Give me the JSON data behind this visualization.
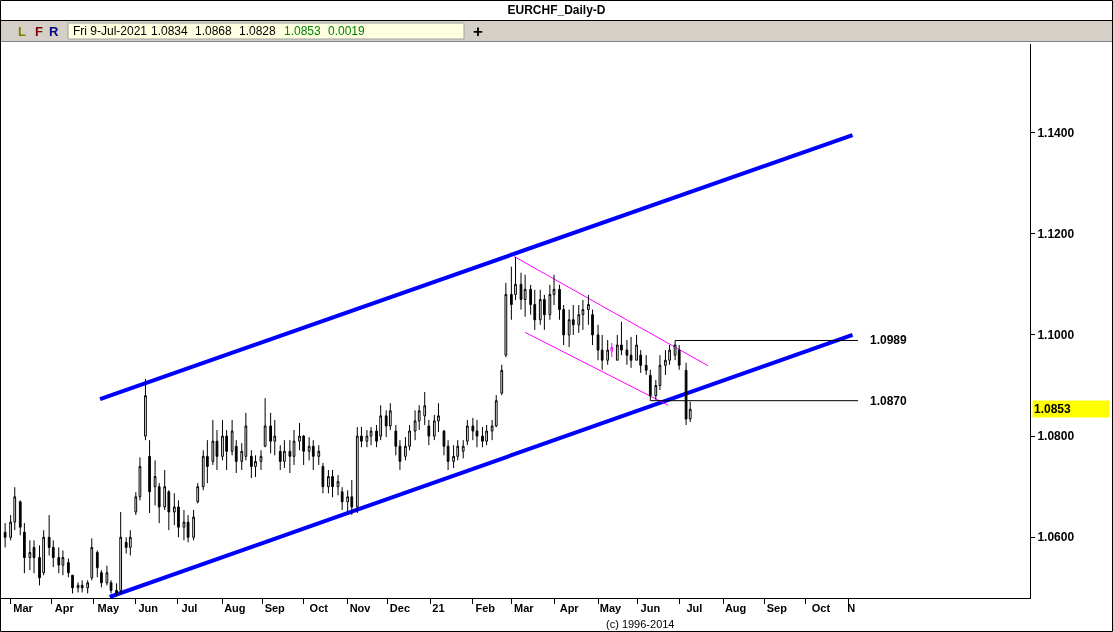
{
  "chart_data": {
    "type": "candlestick",
    "title": "EURCHF_Daily-D",
    "xlim": [
      "2020-02-24",
      "2022-03-13"
    ],
    "ylim": [
      1.048,
      1.1575
    ],
    "xticks": [
      {
        "value": "2020-03-02",
        "label": null
      },
      {
        "value": "2020-03-11",
        "label": "Mar"
      },
      {
        "value": "2020-04-01",
        "label": null
      },
      {
        "value": "2020-04-10",
        "label": "Apr"
      },
      {
        "value": "2020-05-01",
        "label": null
      },
      {
        "value": "2020-05-12",
        "label": "May"
      },
      {
        "value": "2020-06-01",
        "label": null
      },
      {
        "value": "2020-06-10",
        "label": "Jun"
      },
      {
        "value": "2020-07-01",
        "label": null
      },
      {
        "value": "2020-07-10",
        "label": "Jul"
      },
      {
        "value": "2020-08-03",
        "label": null
      },
      {
        "value": "2020-08-12",
        "label": "Aug"
      },
      {
        "value": "2020-09-01",
        "label": null
      },
      {
        "value": "2020-09-10",
        "label": "Sep"
      },
      {
        "value": "2020-10-01",
        "label": null
      },
      {
        "value": "2020-10-12",
        "label": "Oct"
      },
      {
        "value": "2020-11-02",
        "label": null
      },
      {
        "value": "2020-11-11",
        "label": "Nov"
      },
      {
        "value": "2020-12-01",
        "label": null
      },
      {
        "value": "2020-12-10",
        "label": "Dec"
      },
      {
        "value": "2021-01-01",
        "label": null
      },
      {
        "value": "2021-01-07",
        "label": "21"
      },
      {
        "value": "2021-02-01",
        "label": null
      },
      {
        "value": "2021-02-10",
        "label": "Feb"
      },
      {
        "value": "2021-03-01",
        "label": null
      },
      {
        "value": "2021-03-10",
        "label": "Mar"
      },
      {
        "value": "2021-04-01",
        "label": null
      },
      {
        "value": "2021-04-12",
        "label": "Apr"
      },
      {
        "value": "2021-05-03",
        "label": null
      },
      {
        "value": "2021-05-12",
        "label": "May"
      },
      {
        "value": "2021-06-01",
        "label": null
      },
      {
        "value": "2021-06-10",
        "label": "Jun"
      },
      {
        "value": "2021-07-01",
        "label": null
      },
      {
        "value": "2021-07-12",
        "label": "Jul"
      },
      {
        "value": "2021-08-02",
        "label": null
      },
      {
        "value": "2021-08-11",
        "label": "Aug"
      },
      {
        "value": "2021-09-01",
        "label": null
      },
      {
        "value": "2021-09-10",
        "label": "Sep"
      },
      {
        "value": "2021-10-01",
        "label": null
      },
      {
        "value": "2021-10-12",
        "label": "Oct"
      },
      {
        "value": "2021-11-01",
        "label": null
      },
      {
        "value": "2021-11-03",
        "label": "N"
      }
    ],
    "yticks": [
      {
        "value": 1.06,
        "label": "1.0600"
      },
      {
        "value": 1.08,
        "label": "1.0800"
      },
      {
        "value": 1.1,
        "label": "1.1000"
      },
      {
        "value": 1.12,
        "label": "1.1200"
      },
      {
        "value": 1.14,
        "label": "1.1400"
      }
    ],
    "series": [
      {
        "type": "candlestick",
        "color": "#000000",
        "x": [
          "2020-02-27",
          "2020-03-02",
          "2020-03-05",
          "2020-03-09",
          "2020-03-12",
          "2020-03-16",
          "2020-03-19",
          "2020-03-23",
          "2020-03-26",
          "2020-03-30",
          "2020-04-02",
          "2020-04-06",
          "2020-04-09",
          "2020-04-13",
          "2020-04-16",
          "2020-04-20",
          "2020-04-23",
          "2020-04-27",
          "2020-04-30",
          "2020-05-04",
          "2020-05-07",
          "2020-05-11",
          "2020-05-14",
          "2020-05-18",
          "2020-05-21",
          "2020-05-25",
          "2020-05-28",
          "2020-06-01",
          "2020-06-04",
          "2020-06-08",
          "2020-06-11",
          "2020-06-15",
          "2020-06-18",
          "2020-06-22",
          "2020-06-25",
          "2020-06-29",
          "2020-07-02",
          "2020-07-06",
          "2020-07-09",
          "2020-07-13",
          "2020-07-16",
          "2020-07-20",
          "2020-07-23",
          "2020-07-27",
          "2020-07-30",
          "2020-08-03",
          "2020-08-06",
          "2020-08-10",
          "2020-08-13",
          "2020-08-17",
          "2020-08-20",
          "2020-08-24",
          "2020-08-27",
          "2020-08-31",
          "2020-09-03",
          "2020-09-07",
          "2020-09-10",
          "2020-09-14",
          "2020-09-17",
          "2020-09-21",
          "2020-09-24",
          "2020-09-28",
          "2020-10-01",
          "2020-10-05",
          "2020-10-08",
          "2020-10-12",
          "2020-10-15",
          "2020-10-19",
          "2020-10-22",
          "2020-10-26",
          "2020-10-29",
          "2020-11-02",
          "2020-11-05",
          "2020-11-09",
          "2020-11-12",
          "2020-11-16",
          "2020-11-19",
          "2020-11-23",
          "2020-11-26",
          "2020-11-30",
          "2020-12-03",
          "2020-12-07",
          "2020-12-10",
          "2020-12-14",
          "2020-12-17",
          "2020-12-21",
          "2020-12-24",
          "2020-12-28",
          "2020-12-31",
          "2021-01-04",
          "2021-01-07",
          "2021-01-11",
          "2021-01-14",
          "2021-01-18",
          "2021-01-21",
          "2021-01-25",
          "2021-01-28",
          "2021-02-01",
          "2021-02-04",
          "2021-02-08",
          "2021-02-11",
          "2021-02-15",
          "2021-02-18",
          "2021-02-22",
          "2021-02-25",
          "2021-03-01",
          "2021-03-04",
          "2021-03-08",
          "2021-03-11",
          "2021-03-15",
          "2021-03-18",
          "2021-03-22",
          "2021-03-25",
          "2021-03-29",
          "2021-04-01",
          "2021-04-05",
          "2021-04-08",
          "2021-04-12",
          "2021-04-15",
          "2021-04-19",
          "2021-04-22",
          "2021-04-26",
          "2021-04-29",
          "2021-05-03",
          "2021-05-06",
          "2021-05-10",
          "2021-05-17",
          "2021-05-20",
          "2021-05-24",
          "2021-05-27",
          "2021-05-31",
          "2021-06-03",
          "2021-06-07",
          "2021-06-10",
          "2021-06-14",
          "2021-06-17",
          "2021-06-21",
          "2021-06-24",
          "2021-06-28",
          "2021-07-01",
          "2021-07-06",
          "2021-07-09"
        ],
        "ohlc": [
          [
            1.061,
            1.0628,
            1.058,
            1.06
          ],
          [
            1.06,
            1.0644,
            1.0594,
            1.063
          ],
          [
            1.063,
            1.0699,
            1.0614,
            1.068
          ],
          [
            1.067,
            1.0673,
            1.0604,
            1.062
          ],
          [
            1.061,
            1.0628,
            1.0529,
            1.056
          ],
          [
            1.056,
            1.0594,
            1.0535,
            1.057
          ],
          [
            1.058,
            1.0594,
            1.0529,
            1.056
          ],
          [
            1.056,
            1.0584,
            1.0505,
            1.052
          ],
          [
            1.053,
            1.0614,
            1.0525,
            1.06
          ],
          [
            1.06,
            1.0644,
            1.0564,
            1.058
          ],
          [
            1.058,
            1.0594,
            1.0541,
            1.056
          ],
          [
            1.056,
            1.058,
            1.0529,
            1.0545
          ],
          [
            1.0545,
            1.0574,
            1.0525,
            1.056
          ],
          [
            1.055,
            1.0558,
            1.0521,
            1.053
          ],
          [
            1.0525,
            1.0525,
            1.0489,
            1.05
          ],
          [
            1.05,
            1.0511,
            1.0491,
            1.0505
          ],
          [
            1.0505,
            1.0515,
            1.0491,
            1.05
          ],
          [
            1.05,
            1.0515,
            1.0489,
            1.051
          ],
          [
            1.052,
            1.0598,
            1.0515,
            1.058
          ],
          [
            1.057,
            1.0574,
            1.0521,
            1.054
          ],
          [
            1.053,
            1.0535,
            1.0501,
            1.051
          ],
          [
            1.051,
            1.0544,
            1.0505,
            1.053
          ],
          [
            1.051,
            1.0515,
            1.0489,
            1.0495
          ],
          [
            1.0495,
            1.0509,
            1.0483,
            1.049
          ],
          [
            1.0495,
            1.065,
            1.0489,
            1.06
          ],
          [
            1.059,
            1.06,
            1.0568,
            1.058
          ],
          [
            1.058,
            1.0614,
            1.0564,
            1.06
          ],
          [
            1.065,
            1.0689,
            1.0644,
            1.068
          ],
          [
            1.068,
            1.0758,
            1.0673,
            1.074
          ],
          [
            1.08,
            1.0913,
            1.0792,
            1.088
          ],
          [
            1.076,
            1.0792,
            1.0648,
            1.069
          ],
          [
            1.07,
            1.0752,
            1.0663,
            1.072
          ],
          [
            1.07,
            1.0707,
            1.0628,
            1.066
          ],
          [
            1.066,
            1.0733,
            1.0654,
            1.07
          ],
          [
            1.069,
            1.0693,
            1.0614,
            1.065
          ],
          [
            1.065,
            1.0687,
            1.0624,
            1.066
          ],
          [
            1.066,
            1.0673,
            1.06,
            1.062
          ],
          [
            1.062,
            1.0654,
            1.0594,
            1.063
          ],
          [
            1.063,
            1.0644,
            1.059,
            1.06
          ],
          [
            1.06,
            1.0654,
            1.0594,
            1.064
          ],
          [
            1.067,
            1.0707,
            1.0667,
            1.07
          ],
          [
            1.07,
            1.0772,
            1.0693,
            1.076
          ],
          [
            1.076,
            1.0792,
            1.0707,
            1.074
          ],
          [
            1.075,
            1.0832,
            1.0743,
            1.079
          ],
          [
            1.079,
            1.0812,
            1.0733,
            1.076
          ],
          [
            1.076,
            1.0832,
            1.0752,
            1.08
          ],
          [
            1.08,
            1.0812,
            1.0733,
            1.077
          ],
          [
            1.077,
            1.0832,
            1.0762,
            1.081
          ],
          [
            1.078,
            1.0792,
            1.0727,
            1.075
          ],
          [
            1.075,
            1.0786,
            1.0733,
            1.077
          ],
          [
            1.076,
            1.0846,
            1.0752,
            1.082
          ],
          [
            1.076,
            1.0772,
            1.0717,
            1.074
          ],
          [
            1.074,
            1.0762,
            1.0719,
            1.075
          ],
          [
            1.075,
            1.0772,
            1.0733,
            1.076
          ],
          [
            1.078,
            1.0875,
            1.0778,
            1.082
          ],
          [
            1.082,
            1.0846,
            1.0766,
            1.079
          ],
          [
            1.079,
            1.0832,
            1.0762,
            1.08
          ],
          [
            1.077,
            1.0782,
            1.0733,
            1.075
          ],
          [
            1.075,
            1.0792,
            1.0737,
            1.077
          ],
          [
            1.077,
            1.0792,
            1.0727,
            1.076
          ],
          [
            1.076,
            1.0812,
            1.0743,
            1.079
          ],
          [
            1.079,
            1.0826,
            1.0772,
            1.08
          ],
          [
            1.08,
            1.0802,
            1.0743,
            1.077
          ],
          [
            1.077,
            1.0798,
            1.0752,
            1.078
          ],
          [
            1.078,
            1.0792,
            1.0733,
            1.076
          ],
          [
            1.076,
            1.0782,
            1.0743,
            1.077
          ],
          [
            1.074,
            1.0747,
            1.0687,
            1.07
          ],
          [
            1.07,
            1.0733,
            1.0687,
            1.072
          ],
          [
            1.072,
            1.0733,
            1.0679,
            1.07
          ],
          [
            1.07,
            1.0723,
            1.0683,
            1.071
          ],
          [
            1.069,
            1.0699,
            1.0654,
            1.067
          ],
          [
            1.067,
            1.0693,
            1.065,
            1.068
          ],
          [
            1.068,
            1.0713,
            1.0644,
            1.066
          ],
          [
            1.066,
            1.0818,
            1.0648,
            1.08
          ],
          [
            1.08,
            1.0818,
            1.0778,
            1.079
          ],
          [
            1.079,
            1.0812,
            1.0778,
            1.08
          ],
          [
            1.08,
            1.0818,
            1.0782,
            1.081
          ],
          [
            1.081,
            1.0822,
            1.0778,
            1.079
          ],
          [
            1.08,
            1.0861,
            1.0792,
            1.084
          ],
          [
            1.084,
            1.0851,
            1.0798,
            1.082
          ],
          [
            1.082,
            1.0865,
            1.0812,
            1.085
          ],
          [
            1.081,
            1.0822,
            1.0762,
            1.078
          ],
          [
            1.078,
            1.0792,
            1.0733,
            1.075
          ],
          [
            1.076,
            1.0798,
            1.0752,
            1.078
          ],
          [
            1.078,
            1.0822,
            1.0772,
            1.081
          ],
          [
            1.081,
            1.0851,
            1.0792,
            1.083
          ],
          [
            1.083,
            1.0861,
            1.0812,
            1.085
          ],
          [
            1.084,
            1.0887,
            1.0822,
            1.086
          ],
          [
            1.082,
            1.0832,
            1.0782,
            1.08
          ],
          [
            1.08,
            1.0842,
            1.0792,
            1.083
          ],
          [
            1.083,
            1.0865,
            1.0808,
            1.084
          ],
          [
            1.081,
            1.0812,
            1.0762,
            1.078
          ],
          [
            1.078,
            1.0792,
            1.0733,
            1.075
          ],
          [
            1.075,
            1.0782,
            1.0737,
            1.076
          ],
          [
            1.076,
            1.0792,
            1.0752,
            1.078
          ],
          [
            1.077,
            1.0792,
            1.0756,
            1.078
          ],
          [
            1.079,
            1.0832,
            1.0782,
            1.082
          ],
          [
            1.082,
            1.0836,
            1.0792,
            1.081
          ],
          [
            1.081,
            1.0832,
            1.0778,
            1.08
          ],
          [
            1.08,
            1.0818,
            1.0778,
            1.079
          ],
          [
            1.079,
            1.0822,
            1.0782,
            1.081
          ],
          [
            1.081,
            1.0832,
            1.0792,
            1.082
          ],
          [
            1.082,
            1.0881,
            1.0818,
            1.087
          ],
          [
            1.0885,
            1.0941,
            1.0881,
            1.093
          ],
          [
            1.096,
            1.1103,
            1.0956,
            1.108
          ],
          [
            1.108,
            1.1135,
            1.103,
            1.106
          ],
          [
            1.108,
            1.1154,
            1.1069,
            1.11
          ],
          [
            1.11,
            1.1123,
            1.105,
            1.107
          ],
          [
            1.107,
            1.1119,
            1.1036,
            1.109
          ],
          [
            1.109,
            1.1099,
            1.104,
            1.106
          ],
          [
            1.106,
            1.1089,
            1.101,
            1.103
          ],
          [
            1.103,
            1.1089,
            1.102,
            1.107
          ],
          [
            1.107,
            1.1079,
            1.101,
            1.104
          ],
          [
            1.104,
            1.1099,
            1.103,
            1.108
          ],
          [
            1.108,
            1.1119,
            1.1059,
            1.109
          ],
          [
            1.109,
            1.1099,
            1.103,
            1.105
          ],
          [
            1.105,
            1.1059,
            1.098,
            1.1
          ],
          [
            1.1,
            1.105,
            1.0976,
            1.103
          ],
          [
            1.103,
            1.1059,
            1.1,
            1.102
          ],
          [
            1.102,
            1.1059,
            1.1004,
            1.104
          ],
          [
            1.104,
            1.1069,
            1.101,
            1.105
          ],
          [
            1.105,
            1.1079,
            1.102,
            1.106
          ],
          [
            1.104,
            1.105,
            1.098,
            1.1
          ],
          [
            1.1,
            1.102,
            1.095,
            1.097
          ],
          [
            1.097,
            1.1,
            1.0931,
            1.095
          ],
          [
            1.095,
            1.099,
            1.0941,
            1.097
          ],
          [
            1.095,
            1.1,
            1.095,
            1.098
          ],
          [
            1.098,
            1.1026,
            1.096,
            1.097
          ],
          [
            1.097,
            1.099,
            1.0941,
            1.096
          ],
          [
            1.096,
            1.0996,
            1.0935,
            1.095
          ],
          [
            1.095,
            1.1,
            1.095,
            1.098
          ],
          [
            1.096,
            1.097,
            1.0925,
            1.094
          ],
          [
            1.094,
            1.096,
            1.0921,
            1.093
          ],
          [
            1.092,
            1.0931,
            1.087,
            1.088
          ],
          [
            1.088,
            1.0911,
            1.0872,
            1.09
          ],
          [
            1.09,
            1.096,
            1.0891,
            1.094
          ],
          [
            1.094,
            1.097,
            1.0921,
            1.095
          ],
          [
            1.095,
            1.098,
            1.0941,
            1.097
          ],
          [
            1.096,
            1.0989,
            1.095,
            1.098
          ],
          [
            1.097,
            1.098,
            1.0931,
            1.094
          ],
          [
            1.093,
            1.0945,
            1.0822,
            1.0834
          ],
          [
            1.0834,
            1.0868,
            1.0828,
            1.0853
          ]
        ]
      },
      {
        "type": "candlestick",
        "color": "#ff00ff",
        "x": [
          "2021-05-13"
        ],
        "ohlc": [
          [
            1.0968,
            1.0984,
            1.0956,
            1.0975
          ]
        ]
      },
      {
        "type": "line",
        "color": "#0000ff",
        "x": [
          "2020-05-06",
          "2021-11-04"
        ],
        "values": [
          1.0873,
          1.1395
        ]
      },
      {
        "type": "line",
        "color": "#0000ff",
        "x": [
          "2020-05-13",
          "2021-11-04"
        ],
        "values": [
          1.0482,
          1.1
        ]
      },
      {
        "type": "line",
        "color": "#ff00ff",
        "x": [
          "2021-03-03",
          "2021-07-22"
        ],
        "values": [
          1.1155,
          1.0939
        ]
      },
      {
        "type": "line",
        "color": "#ff00ff",
        "x": [
          "2021-03-11",
          "2021-06-23"
        ],
        "values": [
          1.1005,
          1.0861
        ]
      },
      {
        "type": "line",
        "color": "#000000",
        "x": [
          "2021-06-28",
          "2021-11-08"
        ],
        "values": [
          1.0989,
          1.0989
        ]
      },
      {
        "type": "line",
        "color": "#000000",
        "x": [
          "2021-06-10",
          "2021-11-08"
        ],
        "values": [
          1.087,
          1.087
        ]
      }
    ],
    "annotations": [
      "L",
      "F",
      "R",
      "Fri 9-Jul-2021",
      "1.0834",
      "1.0868",
      "1.0828",
      "1.0853",
      "0.0019",
      "+",
      "(c) 1996-2014",
      "1.0853",
      {
        "text": "1.0989",
        "x": "2021-11-08",
        "y": 1.0989
      },
      {
        "text": "1.0870",
        "x": "2021-11-08",
        "y": 1.087
      }
    ]
  }
}
